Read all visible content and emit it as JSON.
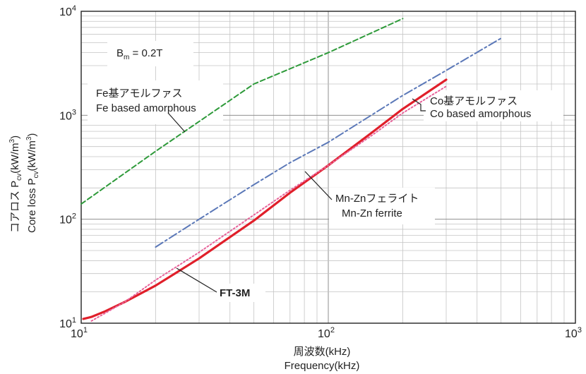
{
  "chart_data": {
    "type": "line",
    "x_scale": "log",
    "y_scale": "log",
    "xlim": [
      10,
      1000
    ],
    "ylim": [
      10,
      10000
    ],
    "grid": true,
    "x_ticks": [
      {
        "base": "10",
        "exp": "1"
      },
      {
        "base": "10",
        "exp": "2"
      },
      {
        "base": "10",
        "exp": "3"
      }
    ],
    "y_ticks": [
      {
        "base": "10",
        "exp": "1"
      },
      {
        "base": "10",
        "exp": "2"
      },
      {
        "base": "10",
        "exp": "3"
      },
      {
        "base": "10",
        "exp": "4"
      }
    ],
    "xlabel_ja": "周波数(kHz)",
    "xlabel_en": "Frequency(kHz)",
    "ylabel_ja": {
      "pre": "コアロス P",
      "sub": "cv",
      "post": "(kW/m",
      "sup": "3",
      "end": ")"
    },
    "ylabel_en": {
      "pre": "Core loss P",
      "sub": "cv",
      "post": "(kW/m",
      "sup": "3",
      "end": ")"
    },
    "condition": {
      "pre": "B",
      "sub": "m",
      "post": " = 0.2T"
    },
    "series": [
      {
        "name": "FT-3M",
        "color": "#e01f2a",
        "style": "solid",
        "points": [
          [
            10.2,
            11
          ],
          [
            11,
            11.5
          ],
          [
            12.5,
            13
          ],
          [
            15,
            16
          ],
          [
            20,
            23
          ],
          [
            30,
            42
          ],
          [
            50,
            97
          ],
          [
            70,
            180
          ],
          [
            100,
            330
          ],
          [
            150,
            680
          ],
          [
            200,
            1150
          ],
          [
            300,
            2200
          ]
        ]
      },
      {
        "name": "Mn-Znフェライト Mn-Zn ferrite",
        "color": "#e8639a",
        "style": "dotted",
        "points": [
          [
            11,
            10.5
          ],
          [
            15,
            16
          ],
          [
            20,
            26
          ],
          [
            30,
            48
          ],
          [
            50,
            110
          ],
          [
            70,
            190
          ],
          [
            100,
            330
          ],
          [
            150,
            640
          ],
          [
            200,
            1050
          ],
          [
            300,
            1900
          ]
        ]
      },
      {
        "name": "Co基アモルファス Co based amorphous",
        "color": "#5b78b8",
        "style": "dashdot",
        "points": [
          [
            20,
            54
          ],
          [
            30,
            100
          ],
          [
            50,
            215
          ],
          [
            70,
            350
          ],
          [
            100,
            550
          ],
          [
            200,
            1550
          ],
          [
            300,
            2700
          ],
          [
            500,
            5500
          ]
        ]
      },
      {
        "name": "Fe基アモルファス Fe based amorphous",
        "color": "#2e9a3a",
        "style": "dashed",
        "points": [
          [
            10,
            140
          ],
          [
            20,
            450
          ],
          [
            50,
            2000
          ],
          [
            100,
            4000
          ],
          [
            200,
            8500
          ]
        ]
      }
    ],
    "annotations": [
      {
        "id": "fe",
        "line1": "Fe基アモルファス",
        "line2": "Fe based amorphous"
      },
      {
        "id": "co",
        "line1": "Co基アモルファス",
        "line2": "Co based amorphous"
      },
      {
        "id": "mnzn",
        "line1": "Mn-Znフェライト",
        "line2": "Mn-Zn ferrite"
      },
      {
        "id": "ft3m",
        "line1": "FT-3M",
        "line2": ""
      }
    ]
  }
}
